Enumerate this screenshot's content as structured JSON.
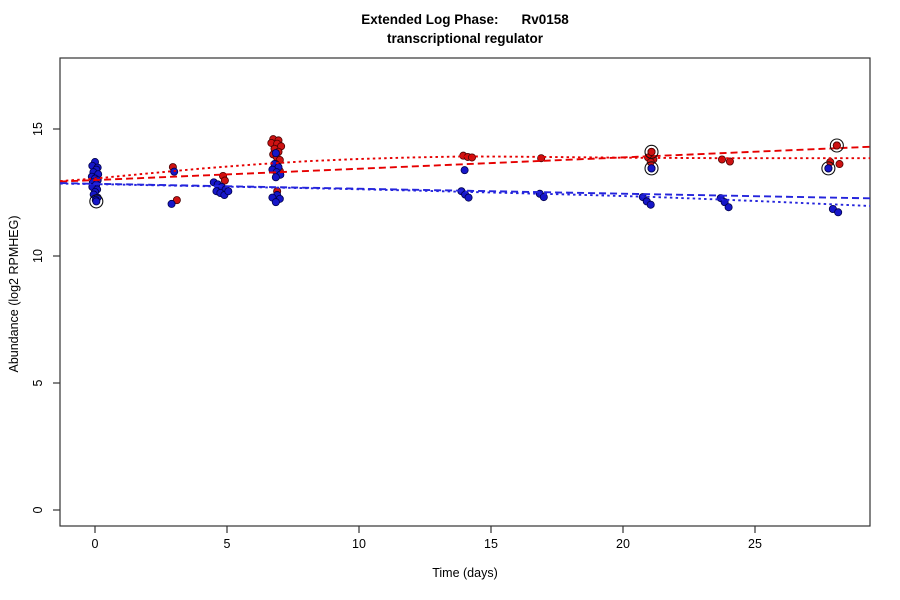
{
  "title": {
    "line1_left": "Extended Log Phase:",
    "line1_right": "Rv0158",
    "line2": "transcriptional regulator"
  },
  "chart_data": {
    "type": "scatter",
    "title": "Extended Log Phase: Rv0158 — transcriptional regulator",
    "xlabel": "Time  (days)",
    "ylabel": "Abundance  (log2 RPMHEG)",
    "xlim": [
      -1.32,
      29.36
    ],
    "ylim": [
      -0.63,
      17.8
    ],
    "x_ticks": [
      0,
      5,
      10,
      15,
      20,
      25
    ],
    "y_ticks": [
      0,
      5,
      10,
      15
    ],
    "grid": false,
    "legend": "none",
    "colors": {
      "red_point_fill": "#CE1212",
      "red_point_stroke": "#4A0000",
      "blue_point_fill": "#1616C8",
      "blue_point_stroke": "#00004A",
      "red_line": "#E60000",
      "blue_line": "#2424DC",
      "ring_stroke": "#111111",
      "axis": "#333333"
    },
    "series": [
      {
        "name": "red-condition",
        "marker": "filled-circle",
        "points": [
          [
            0.0,
            12.9
          ],
          [
            0.1,
            13.0
          ],
          [
            2.95,
            13.5
          ],
          [
            3.1,
            12.2
          ],
          [
            4.85,
            13.15
          ],
          [
            4.92,
            12.97
          ],
          [
            6.75,
            14.6
          ],
          [
            6.95,
            14.55
          ],
          [
            6.68,
            14.45
          ],
          [
            6.9,
            14.42
          ],
          [
            7.05,
            14.32
          ],
          [
            6.8,
            14.22
          ],
          [
            6.95,
            14.1
          ],
          [
            6.75,
            14.0
          ],
          [
            6.88,
            13.9
          ],
          [
            7.0,
            13.78
          ],
          [
            6.85,
            13.62
          ],
          [
            6.78,
            13.45
          ],
          [
            7.0,
            13.35
          ],
          [
            6.9,
            12.55
          ],
          [
            13.95,
            13.95
          ],
          [
            14.12,
            13.9
          ],
          [
            14.28,
            13.88
          ],
          [
            16.9,
            13.85
          ],
          [
            20.95,
            13.88
          ],
          [
            21.15,
            13.8
          ],
          [
            21.05,
            13.7
          ],
          [
            21.08,
            14.1
          ],
          [
            23.75,
            13.8
          ],
          [
            24.05,
            13.72
          ],
          [
            27.85,
            13.7
          ],
          [
            28.2,
            13.62
          ],
          [
            28.1,
            14.35
          ]
        ]
      },
      {
        "name": "blue-condition",
        "marker": "filled-circle",
        "points": [
          [
            0.0,
            13.7
          ],
          [
            -0.1,
            13.55
          ],
          [
            0.1,
            13.48
          ],
          [
            0.05,
            13.4
          ],
          [
            -0.06,
            13.3
          ],
          [
            0.12,
            13.22
          ],
          [
            -0.12,
            13.12
          ],
          [
            0.0,
            13.05
          ],
          [
            0.1,
            12.98
          ],
          [
            -0.08,
            12.9
          ],
          [
            0.05,
            12.82
          ],
          [
            -0.1,
            12.72
          ],
          [
            0.08,
            12.62
          ],
          [
            0.0,
            12.52
          ],
          [
            -0.05,
            12.42
          ],
          [
            0.1,
            12.3
          ],
          [
            0.03,
            12.2
          ],
          [
            3.0,
            13.32
          ],
          [
            2.9,
            12.05
          ],
          [
            4.5,
            12.9
          ],
          [
            4.65,
            12.82
          ],
          [
            4.8,
            12.72
          ],
          [
            4.95,
            12.62
          ],
          [
            4.6,
            12.55
          ],
          [
            4.75,
            12.48
          ],
          [
            4.9,
            12.4
          ],
          [
            5.05,
            12.55
          ],
          [
            6.85,
            14.05
          ],
          [
            6.8,
            13.62
          ],
          [
            6.95,
            13.5
          ],
          [
            6.72,
            13.4
          ],
          [
            6.88,
            13.3
          ],
          [
            7.02,
            13.2
          ],
          [
            6.85,
            13.1
          ],
          [
            6.9,
            12.4
          ],
          [
            6.72,
            12.3
          ],
          [
            7.0,
            12.25
          ],
          [
            6.85,
            12.12
          ],
          [
            14.0,
            13.38
          ],
          [
            13.88,
            12.55
          ],
          [
            14.02,
            12.42
          ],
          [
            14.15,
            12.3
          ],
          [
            16.85,
            12.45
          ],
          [
            17.0,
            12.32
          ],
          [
            20.75,
            12.32
          ],
          [
            20.9,
            12.15
          ],
          [
            21.05,
            12.02
          ],
          [
            21.08,
            13.45
          ],
          [
            23.7,
            12.28
          ],
          [
            23.85,
            12.12
          ],
          [
            24.0,
            11.92
          ],
          [
            27.95,
            11.85
          ],
          [
            28.15,
            11.72
          ],
          [
            27.78,
            13.45
          ]
        ]
      }
    ],
    "circled_points": [
      {
        "x": 0.05,
        "y": 12.15,
        "color": "blue"
      },
      {
        "x": 21.08,
        "y": 14.1,
        "color": "red"
      },
      {
        "x": 21.08,
        "y": 13.45,
        "color": "blue"
      },
      {
        "x": 28.1,
        "y": 14.35,
        "color": "red"
      },
      {
        "x": 27.78,
        "y": 13.45,
        "color": "blue"
      }
    ],
    "trend_lines": [
      {
        "name": "red-linear-fit",
        "color": "#E60000",
        "style": "dashed",
        "points": [
          [
            -1.32,
            12.93
          ],
          [
            29.36,
            14.3
          ]
        ]
      },
      {
        "name": "red-smooth-fit",
        "color": "#E60000",
        "style": "dotted",
        "points": [
          [
            -1.32,
            12.95
          ],
          [
            0,
            13.05
          ],
          [
            2,
            13.25
          ],
          [
            4,
            13.44
          ],
          [
            6,
            13.6
          ],
          [
            8,
            13.73
          ],
          [
            10,
            13.82
          ],
          [
            12,
            13.88
          ],
          [
            14,
            13.92
          ],
          [
            16,
            13.91
          ],
          [
            18,
            13.89
          ],
          [
            20,
            13.87
          ],
          [
            22,
            13.86
          ],
          [
            24,
            13.85
          ],
          [
            26,
            13.85
          ],
          [
            29.36,
            13.85
          ]
        ]
      },
      {
        "name": "blue-linear-fit",
        "color": "#2424DC",
        "style": "dashed",
        "points": [
          [
            -1.32,
            12.87
          ],
          [
            29.36,
            12.27
          ]
        ]
      },
      {
        "name": "blue-smooth-fit",
        "color": "#2424DC",
        "style": "dotted",
        "points": [
          [
            -1.32,
            12.85
          ],
          [
            0,
            12.83
          ],
          [
            3,
            12.77
          ],
          [
            6,
            12.71
          ],
          [
            9,
            12.65
          ],
          [
            12,
            12.58
          ],
          [
            15,
            12.5
          ],
          [
            18,
            12.42
          ],
          [
            21,
            12.33
          ],
          [
            24,
            12.21
          ],
          [
            26.5,
            12.1
          ],
          [
            29.36,
            11.97
          ]
        ]
      }
    ]
  }
}
